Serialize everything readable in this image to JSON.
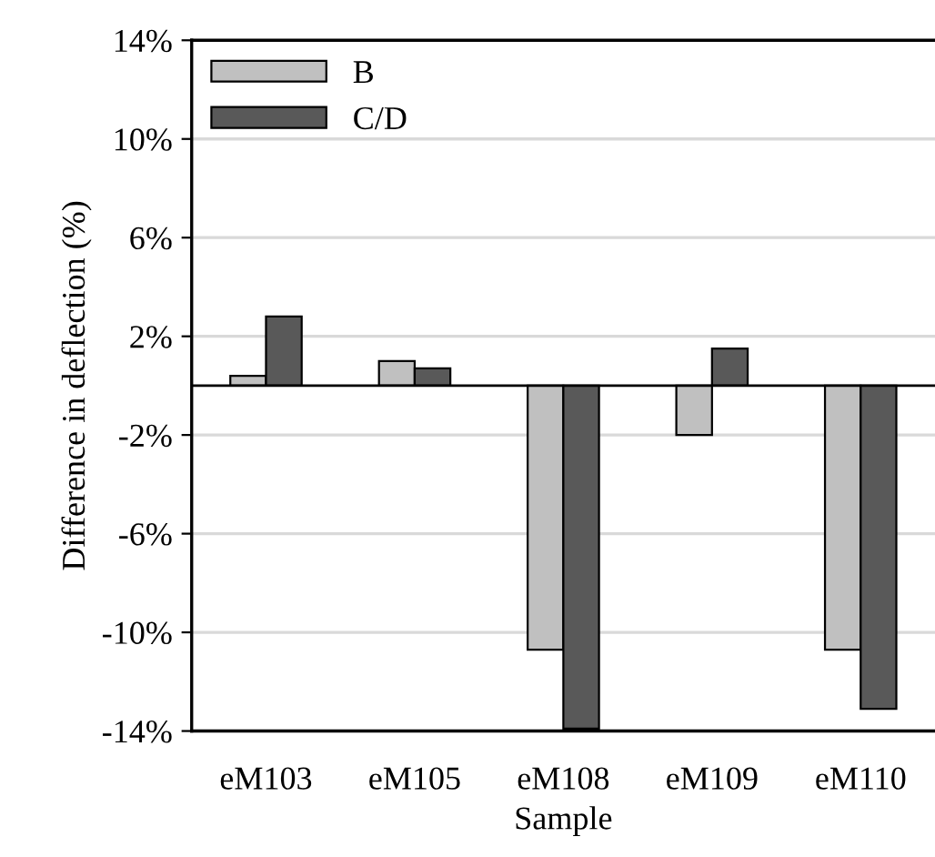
{
  "chart_data": {
    "type": "bar",
    "xlabel": "Sample",
    "ylabel": "Difference in deflection (%)",
    "categories": [
      "eM103",
      "eM105",
      "eM108",
      "eM109",
      "eM110"
    ],
    "series": [
      {
        "name": "B",
        "color": "#c0c0c0",
        "values": [
          0.4,
          1.0,
          -10.7,
          -2.0,
          -10.7
        ]
      },
      {
        "name": "C/D",
        "color": "#595959",
        "values": [
          2.8,
          0.7,
          -13.9,
          1.5,
          -13.1
        ]
      }
    ],
    "ylim": [
      -14,
      14
    ],
    "yticks": [
      {
        "value": -14,
        "label": "-14%"
      },
      {
        "value": -10,
        "label": "-10%"
      },
      {
        "value": -6,
        "label": "-6%"
      },
      {
        "value": -2,
        "label": "-2%"
      },
      {
        "value": 2,
        "label": "2%"
      },
      {
        "value": 6,
        "label": "6%"
      },
      {
        "value": 10,
        "label": "10%"
      },
      {
        "value": 14,
        "label": "14%"
      }
    ],
    "ref_lines": [
      {
        "axis": "y",
        "value": 0,
        "color": "#000000"
      }
    ],
    "grid": "y",
    "legend": "top left"
  }
}
